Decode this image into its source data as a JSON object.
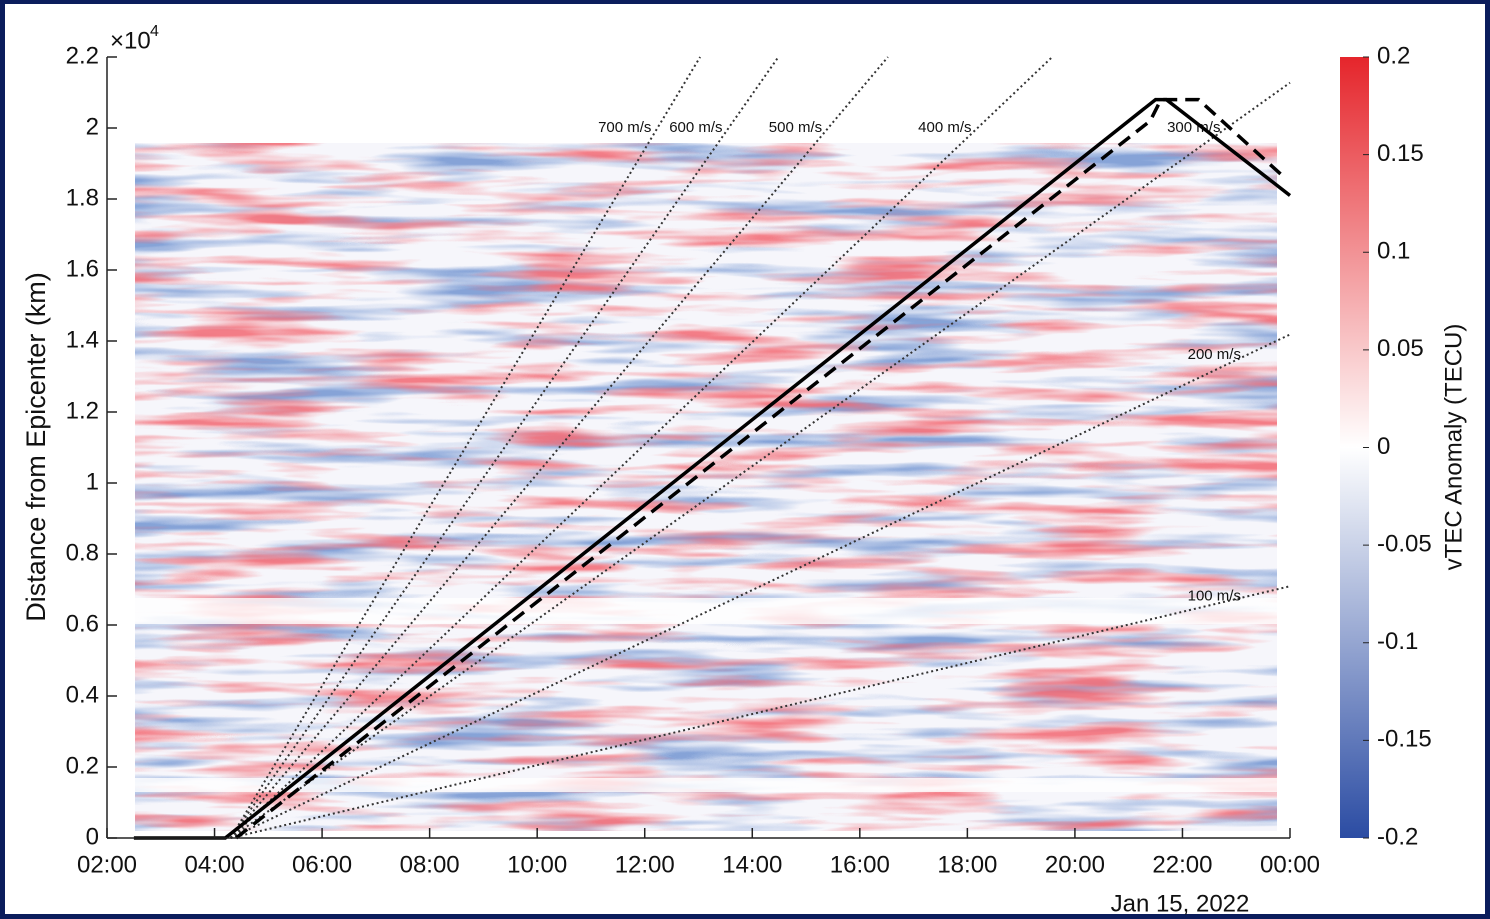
{
  "chart_data": {
    "type": "heatmap",
    "xlim": [
      2,
      24
    ],
    "xticks": [
      {
        "value": 2,
        "label": "02:00"
      },
      {
        "value": 4,
        "label": "04:00"
      },
      {
        "value": 6,
        "label": "06:00"
      },
      {
        "value": 8,
        "label": "08:00"
      },
      {
        "value": 10,
        "label": "10:00"
      },
      {
        "value": 12,
        "label": "12:00"
      },
      {
        "value": 14,
        "label": "14:00"
      },
      {
        "value": 16,
        "label": "16:00"
      },
      {
        "value": 18,
        "label": "18:00"
      },
      {
        "value": 20,
        "label": "20:00"
      },
      {
        "value": 22,
        "label": "22:00"
      },
      {
        "value": 24,
        "label": "00:00"
      }
    ],
    "x_date_label": "Jan 15, 2022",
    "ylim": [
      0,
      22000
    ],
    "yticks": [
      {
        "value": 0,
        "label": "0"
      },
      {
        "value": 2000,
        "label": "0.2"
      },
      {
        "value": 4000,
        "label": "0.4"
      },
      {
        "value": 6000,
        "label": "0.6"
      },
      {
        "value": 8000,
        "label": "0.8"
      },
      {
        "value": 10000,
        "label": "1"
      },
      {
        "value": 12000,
        "label": "1.2"
      },
      {
        "value": 14000,
        "label": "1.4"
      },
      {
        "value": 16000,
        "label": "1.6"
      },
      {
        "value": 18000,
        "label": "1.8"
      },
      {
        "value": 20000,
        "label": "2"
      },
      {
        "value": 22000,
        "label": "2.2"
      }
    ],
    "y_scale_base": "×10",
    "y_scale_exponent": "4",
    "ylabel": "Distance from Epicenter (km)",
    "colorbar": {
      "label": "vTEC Anomaly (TECU)",
      "lim": [
        -0.2,
        0.2
      ],
      "ticks": [
        -0.2,
        -0.15,
        -0.1,
        -0.05,
        0,
        0.05,
        0.1,
        0.15,
        0.2
      ],
      "colors": [
        "#2b4ca3",
        "#ffffff",
        "#e5252b"
      ]
    },
    "lines": [
      {
        "style": "solid",
        "color": "#000000",
        "x": [
          2.5,
          4.2,
          21.5,
          21.7,
          24
        ],
        "y": [
          0,
          0,
          20800,
          20800,
          18100
        ]
      },
      {
        "style": "dashed",
        "color": "#000000",
        "x": [
          4.4,
          21.4,
          21.6,
          22.3,
          23.9
        ],
        "y": [
          0,
          20200,
          20800,
          20800,
          18600
        ]
      }
    ],
    "speed_lines": {
      "origin": 4.3,
      "speeds": [
        700,
        600,
        500,
        400,
        300,
        200,
        100
      ],
      "value_labels": [
        "700 m/s",
        "600 m/s",
        "500 m/s",
        "400 m/s",
        "300 m/s",
        "200 m/s",
        "100 m/s"
      ]
    }
  }
}
